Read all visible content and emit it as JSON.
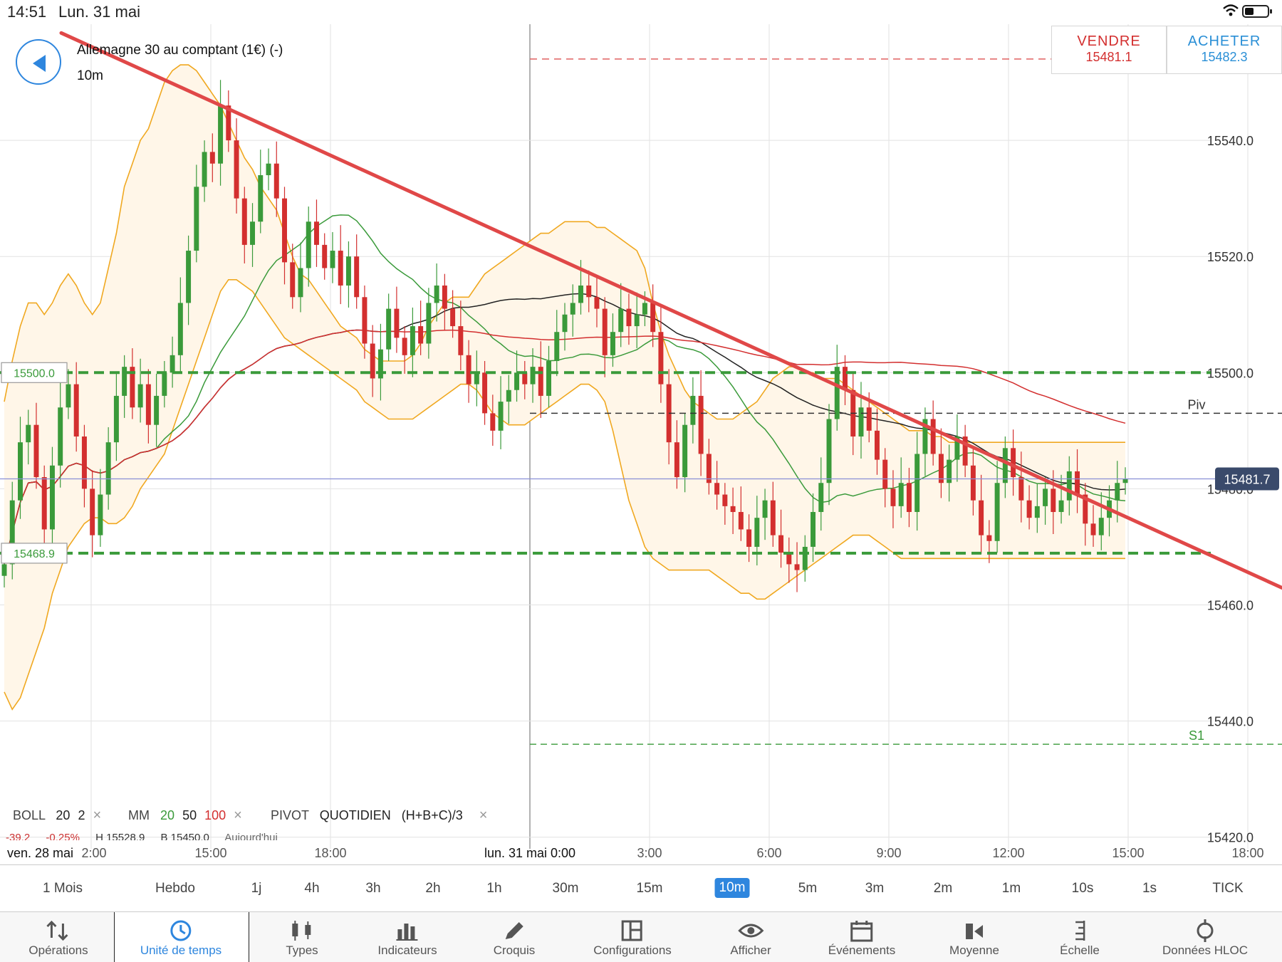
{
  "status": {
    "time": "14:51",
    "date": "Lun. 31 mai"
  },
  "instrument": {
    "name": "Allemagne 30 au comptant (1€) (-)",
    "timeframe": "10m"
  },
  "trade": {
    "sell": {
      "label": "VENDRE",
      "price": "15481.1"
    },
    "buy": {
      "label": "ACHETER",
      "price": "15482.3"
    }
  },
  "chart_data": {
    "type": "candlestick",
    "y_ticks": [
      "15540.0",
      "15520.0",
      "15500.0",
      "15480.0",
      "15460.0",
      "15440.0",
      "15420.0"
    ],
    "y_tick_values": [
      15540,
      15520,
      15500,
      15480,
      15460,
      15440,
      15420
    ],
    "ylim": [
      15418,
      15560
    ],
    "x_labels": [
      "ven. 28 mai",
      "2:00",
      "15:00",
      "18:00",
      "lun. 31 mai 0:00",
      "3:00",
      "6:00",
      "9:00",
      "12:00",
      "15:00",
      "18:00"
    ],
    "horizontal_lines": [
      {
        "label": "15500.0",
        "value": 15500,
        "color": "#3a9a3a",
        "style": "dashed-thick"
      },
      {
        "label": "15468.9",
        "value": 15468.9,
        "color": "#3a9a3a",
        "style": "dashed-thick"
      },
      {
        "label": "Piv",
        "value": 15493,
        "color": "#333333",
        "style": "dashed"
      },
      {
        "label": "S1",
        "value": 15436,
        "color": "#3a9a3a",
        "style": "dashed"
      }
    ],
    "current_price": {
      "label": "15481.7",
      "value": 15481.7
    },
    "ask_line": {
      "value": 15554
    },
    "trendline": {
      "from": [
        15558,
        0.045
      ],
      "to": [
        15473,
        1.0
      ],
      "color": "#e04848"
    },
    "colors": {
      "up": "#3a9a3a",
      "down": "#d32f2f",
      "boll": "#f0a820",
      "mm20": "#3a9a3a",
      "mm50": "#222222",
      "mm100": "#d32f2f"
    },
    "closes": [
      15467,
      15478,
      15488,
      15491,
      15482,
      15473,
      15484,
      15494,
      15498,
      15489,
      15480,
      15472,
      15479,
      15488,
      15496,
      15501,
      15494,
      15498,
      15491,
      15496,
      15500,
      15503,
      15512,
      15521,
      15532,
      15538,
      15536,
      15546,
      15540,
      15530,
      15522,
      15526,
      15534,
      15536,
      15530,
      15519,
      15513,
      15518,
      15526,
      15522,
      15518,
      15521,
      15515,
      15520,
      15513,
      15505,
      15499,
      15504,
      15511,
      15506,
      15503,
      15508,
      15505,
      15512,
      15515,
      15511,
      15508,
      15503,
      15498,
      15500,
      15493,
      15490,
      15495,
      15497,
      15500,
      15498,
      15501,
      15496,
      15502,
      15507,
      15510,
      15512,
      15515,
      15513,
      15511,
      15503,
      15507,
      15511,
      15508,
      15510,
      15512,
      15507,
      15498,
      15488,
      15482,
      15491,
      15496,
      15486,
      15481,
      15479,
      15477,
      15476,
      15473,
      15470,
      15475,
      15478,
      15472,
      15469,
      15467,
      15466,
      15470,
      15476,
      15481,
      15492,
      15501,
      15497,
      15489,
      15494,
      15490,
      15485,
      15480,
      15477,
      15481,
      15476,
      15486,
      15492,
      15486,
      15481,
      15485,
      15489,
      15484,
      15478,
      15472,
      15471,
      15481,
      15487,
      15482,
      15478,
      15475,
      15477,
      15480,
      15476,
      15478,
      15483,
      15479,
      15474,
      15472,
      15475,
      15478,
      15481,
      15481.7
    ],
    "boll_upper": [
      15495,
      15502,
      15508,
      15512,
      15512,
      15510,
      15512,
      15515,
      15517,
      15515,
      15512,
      15510,
      15512,
      15518,
      15524,
      15532,
      15536,
      15540,
      15542,
      15546,
      15550,
      15552,
      15553,
      15553,
      15552,
      15550,
      15548,
      15546,
      15543,
      15540,
      15537,
      15535,
      15532,
      15530,
      15528,
      15524,
      15520,
      15517,
      15516,
      15514,
      15512,
      15510,
      15508,
      15507,
      15506,
      15504,
      15503,
      15502,
      15502,
      15502,
      15502,
      15503,
      15505,
      15508,
      15510,
      15512,
      15513,
      15513,
      15513,
      15515,
      15517,
      15518,
      15519,
      15520,
      15521,
      15522,
      15523,
      15524,
      15524,
      15525,
      15526,
      15526,
      15526,
      15526,
      15525,
      15525,
      15524,
      15523,
      15522,
      15521,
      15518,
      15512,
      15507,
      15503,
      15500,
      15497,
      15495,
      15494,
      15493,
      15492,
      15492,
      15492,
      15493,
      15494,
      15495,
      15497,
      15499,
      15500,
      15501,
      15501,
      15500,
      15500,
      15499,
      15499,
      15499,
      15498,
      15497,
      15496,
      15495,
      15494,
      15493,
      15492,
      15491,
      15490,
      15490,
      15490,
      15489,
      15489,
      15488,
      15488,
      15488,
      15488,
      15488,
      15488,
      15488,
      15488,
      15488,
      15488,
      15488,
      15488,
      15488,
      15488,
      15488,
      15488,
      15488,
      15488,
      15488,
      15488,
      15488,
      15488,
      15488
    ],
    "boll_lower": [
      15445,
      15442,
      15444,
      15448,
      15452,
      15456,
      15462,
      15466,
      15470,
      15472,
      15474,
      15475,
      15475,
      15474,
      15474,
      15475,
      15477,
      15480,
      15482,
      15484,
      15486,
      15490,
      15494,
      15498,
      15502,
      15506,
      15510,
      15514,
      15516,
      15516,
      15515,
      15514,
      15512,
      15510,
      15508,
      15506,
      15505,
      15504,
      15503,
      15502,
      15501,
      15500,
      15499,
      15498,
      15497,
      15495,
      15494,
      15493,
      15492,
      15492,
      15492,
      15492,
      15493,
      15494,
      15495,
      15496,
      15497,
      15498,
      15498,
      15497,
      15495,
      15493,
      15492,
      15491,
      15491,
      15491,
      15492,
      15493,
      15494,
      15495,
      15496,
      15497,
      15498,
      15498,
      15497,
      15495,
      15490,
      15484,
      15478,
      15474,
      15470,
      15468,
      15467,
      15466,
      15466,
      15466,
      15466,
      15466,
      15466,
      15465,
      15464,
      15463,
      15462,
      15462,
      15461,
      15461,
      15462,
      15463,
      15464,
      15465,
      15466,
      15467,
      15468,
      15469,
      15470,
      15471,
      15472,
      15472,
      15472,
      15471,
      15470,
      15469,
      15468,
      15468,
      15468,
      15468,
      15468,
      15468,
      15468,
      15468,
      15468,
      15468,
      15468,
      15468,
      15468,
      15468,
      15468,
      15468,
      15468,
      15468,
      15468,
      15468,
      15468,
      15468,
      15468,
      15468,
      15468,
      15468,
      15468,
      15468,
      15468
    ]
  },
  "indicators": {
    "boll": {
      "name": "BOLL",
      "p1": "20",
      "p2": "2"
    },
    "mm": {
      "name": "MM",
      "p1": "20",
      "p2": "50",
      "p3": "100"
    },
    "pivot": {
      "name": "PIVOT",
      "p1": "QUOTIDIEN",
      "p2": "(H+B+C)/3"
    },
    "close_glyph": "×",
    "info": {
      "chg": "-39.2",
      "pct": "-0.25%",
      "high": "H 15528.9",
      "low": "B 15450.0",
      "today": "Aujourd'hui"
    }
  },
  "timeframes": [
    {
      "label": "1 Mois",
      "active": false
    },
    {
      "label": "Hebdo",
      "active": false
    },
    {
      "label": "1j",
      "active": false
    },
    {
      "label": "4h",
      "active": false
    },
    {
      "label": "3h",
      "active": false
    },
    {
      "label": "2h",
      "active": false
    },
    {
      "label": "1h",
      "active": false
    },
    {
      "label": "30m",
      "active": false
    },
    {
      "label": "15m",
      "active": false
    },
    {
      "label": "10m",
      "active": true
    },
    {
      "label": "5m",
      "active": false
    },
    {
      "label": "3m",
      "active": false
    },
    {
      "label": "2m",
      "active": false
    },
    {
      "label": "1m",
      "active": false
    },
    {
      "label": "10s",
      "active": false
    },
    {
      "label": "1s",
      "active": false
    },
    {
      "label": "TICK",
      "active": false
    }
  ],
  "toolbar": [
    {
      "label": "Opérations",
      "icon": "arrows-updown-icon"
    },
    {
      "label": "Unité de temps",
      "icon": "clock-icon",
      "active": true
    },
    {
      "label": "Types",
      "icon": "candles-icon"
    },
    {
      "label": "Indicateurs",
      "icon": "bar-chart-icon"
    },
    {
      "label": "Croquis",
      "icon": "pencil-icon"
    },
    {
      "label": "Configurations",
      "icon": "layout-icon"
    },
    {
      "label": "Afficher",
      "icon": "eye-icon"
    },
    {
      "label": "Événements",
      "icon": "calendar-icon"
    },
    {
      "label": "Moyenne",
      "icon": "average-icon"
    },
    {
      "label": "Échelle",
      "icon": "scale-icon"
    },
    {
      "label": "Données HLOC",
      "icon": "crosshair-icon"
    }
  ]
}
